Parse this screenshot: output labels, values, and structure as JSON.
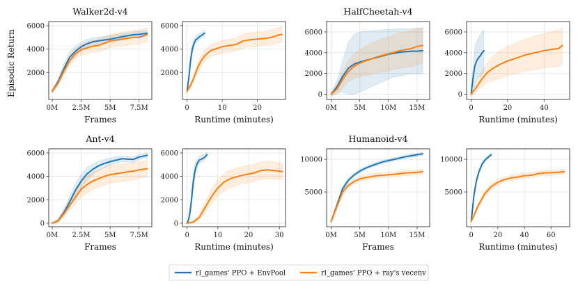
{
  "colors": {
    "envpool": "#1f77b4",
    "ray": "#ff7f0e"
  },
  "legend": {
    "envpool_label": "rl_games' PPO + EnvPool",
    "ray_label": "rl_games' PPO + ray's vecenv"
  },
  "chart_data": [
    {
      "type": "line",
      "title": "Walker2d-v4",
      "xlabel": "Frames",
      "ylabel": "Episodic Return",
      "xlim": [
        -0.3,
        8.6
      ],
      "ylim": [
        -300,
        6350
      ],
      "xticks": [
        0,
        2.5,
        5,
        7.5
      ],
      "xticklabels": [
        "0M",
        "2.5M",
        "5M",
        "7.5M"
      ],
      "yticks": [
        2000,
        4000,
        6000
      ],
      "yticklabels": [
        "2000",
        "4000",
        "6000"
      ],
      "series": [
        {
          "name": "rl_games' PPO + EnvPool",
          "x": [
            0,
            0.5,
            1,
            1.5,
            2,
            2.5,
            3,
            3.5,
            4,
            5,
            6,
            7,
            7.5,
            8.2
          ],
          "y": [
            400,
            1200,
            2300,
            3300,
            3800,
            4200,
            4450,
            4620,
            4700,
            4850,
            5050,
            5220,
            5250,
            5350
          ],
          "band": [
            150,
            250,
            400,
            450,
            450,
            400,
            380,
            350,
            330,
            300,
            280,
            250,
            250,
            250
          ]
        },
        {
          "name": "rl_games' PPO + ray's vecenv",
          "x": [
            0,
            0.5,
            1,
            1.5,
            2,
            2.5,
            3,
            3.5,
            4,
            5,
            6,
            7,
            7.5,
            8.2
          ],
          "y": [
            400,
            1100,
            2100,
            3000,
            3600,
            3950,
            4100,
            4250,
            4300,
            4700,
            4850,
            5000,
            5000,
            5250
          ],
          "band": [
            150,
            250,
            350,
            400,
            450,
            450,
            500,
            500,
            550,
            550,
            600,
            600,
            600,
            600
          ]
        }
      ]
    },
    {
      "type": "line",
      "title": "",
      "xlabel": "Runtime (minutes)",
      "ylabel": "",
      "xlim": [
        -1.3,
        28
      ],
      "ylim": [
        -300,
        6350
      ],
      "xticks": [
        0,
        10,
        20
      ],
      "xticklabels": [
        "0",
        "10",
        "20"
      ],
      "yticks": [
        2000,
        4000,
        6000
      ],
      "yticklabels": [
        "2000",
        "4000",
        "6000"
      ],
      "series": [
        {
          "name": "rl_games' PPO + EnvPool",
          "x": [
            0,
            0.5,
            1,
            1.5,
            2,
            2.5,
            3,
            3.5,
            4,
            5
          ],
          "y": [
            400,
            1500,
            3000,
            4000,
            4500,
            4800,
            4900,
            5050,
            5150,
            5350
          ],
          "band": [
            150,
            300,
            400,
            400,
            350,
            300,
            300,
            280,
            260,
            250
          ]
        },
        {
          "name": "rl_games' PPO + ray's vecenv",
          "x": [
            0,
            1,
            2,
            3,
            4,
            5,
            6,
            7,
            8,
            10,
            12,
            14,
            16,
            18,
            20,
            22,
            24,
            26,
            27
          ],
          "y": [
            400,
            900,
            1600,
            2400,
            3000,
            3400,
            3700,
            3900,
            4000,
            4200,
            4300,
            4400,
            4700,
            4800,
            4850,
            4900,
            5000,
            5200,
            5250
          ],
          "band": [
            150,
            250,
            300,
            400,
            450,
            450,
            500,
            500,
            500,
            550,
            550,
            550,
            600,
            600,
            600,
            600,
            650,
            650,
            650
          ]
        }
      ]
    },
    {
      "type": "line",
      "title": "HalfCheetah-v4",
      "xlabel": "",
      "ylabel": "",
      "xlim": [
        -0.8,
        17.2
      ],
      "ylim": [
        -500,
        7000
      ],
      "xticks": [
        0,
        5,
        10,
        15
      ],
      "xticklabels": [
        "0M",
        "5M",
        "10M",
        "15M"
      ],
      "yticks": [
        0,
        2000,
        4000,
        6000
      ],
      "yticklabels": [
        "0",
        "2000",
        "4000",
        "6000"
      ],
      "series": [
        {
          "name": "rl_games' PPO + EnvPool",
          "x": [
            0,
            1,
            2,
            3,
            4,
            5,
            6,
            7,
            8,
            9,
            10,
            11,
            12,
            13,
            14,
            15,
            16
          ],
          "y": [
            0,
            700,
            1700,
            2500,
            2900,
            3100,
            3250,
            3400,
            3550,
            3700,
            3850,
            3950,
            4050,
            4100,
            4150,
            4150,
            4200
          ],
          "band": [
            200,
            600,
            1500,
            2500,
            2900,
            2900,
            2800,
            2700,
            2600,
            2500,
            2400,
            2300,
            2300,
            2200,
            2200,
            2200,
            2200
          ]
        },
        {
          "name": "rl_games' PPO + ray's vecenv",
          "x": [
            0,
            1,
            2,
            3,
            4,
            5,
            6,
            7,
            8,
            9,
            10,
            11,
            12,
            13,
            14,
            15,
            16
          ],
          "y": [
            0,
            500,
            1400,
            2200,
            2700,
            3000,
            3200,
            3400,
            3600,
            3750,
            3900,
            4050,
            4200,
            4300,
            4400,
            4600,
            4700
          ],
          "band": [
            200,
            500,
            800,
            1000,
            1200,
            1300,
            1400,
            1500,
            1550,
            1600,
            1650,
            1650,
            1700,
            1700,
            1750,
            1750,
            1750
          ]
        }
      ]
    },
    {
      "type": "line",
      "title": "",
      "xlabel": "Runtime (minutes)",
      "ylabel": "",
      "xlim": [
        -2.5,
        54
      ],
      "ylim": [
        -500,
        7000
      ],
      "xticks": [
        0,
        20,
        40
      ],
      "xticklabels": [
        "0",
        "20",
        "40"
      ],
      "yticks": [
        0,
        2000,
        4000,
        6000
      ],
      "yticklabels": [
        "0",
        "2000",
        "4000",
        "6000"
      ],
      "series": [
        {
          "name": "rl_games' PPO + EnvPool",
          "x": [
            0,
            1,
            2,
            3,
            4,
            5,
            6,
            7
          ],
          "y": [
            0,
            1500,
            2700,
            3200,
            3500,
            3700,
            4000,
            4200
          ],
          "band": [
            200,
            1000,
            1800,
            1900,
            1900,
            2000,
            2000,
            2000
          ]
        },
        {
          "name": "rl_games' PPO + ray's vecenv",
          "x": [
            0,
            3,
            6,
            9,
            12,
            15,
            20,
            25,
            30,
            35,
            40,
            45,
            48,
            50
          ],
          "y": [
            0,
            700,
            1500,
            2100,
            2500,
            2800,
            3200,
            3500,
            3800,
            4000,
            4200,
            4350,
            4400,
            4700
          ],
          "band": [
            200,
            400,
            800,
            1000,
            1200,
            1300,
            1400,
            1500,
            1550,
            1600,
            1650,
            1700,
            1750,
            1750
          ]
        }
      ]
    },
    {
      "type": "line",
      "title": "Ant-v4",
      "xlabel": "Frames",
      "ylabel": "",
      "xlim": [
        -0.3,
        8.6
      ],
      "ylim": [
        -300,
        6350
      ],
      "xticks": [
        0,
        2.5,
        5,
        7.5
      ],
      "xticklabels": [
        "0M",
        "2.5M",
        "5M",
        "7.5M"
      ],
      "yticks": [
        0,
        2000,
        4000,
        6000
      ],
      "yticklabels": [
        "0",
        "2000",
        "4000",
        "6000"
      ],
      "series": [
        {
          "name": "rl_games' PPO + EnvPool",
          "x": [
            0,
            0.5,
            1,
            1.5,
            2,
            2.5,
            3,
            3.5,
            4,
            4.5,
            5,
            6,
            7,
            7.5,
            8.2
          ],
          "y": [
            0,
            200,
            900,
            1800,
            2800,
            3600,
            4200,
            4600,
            4900,
            5100,
            5250,
            5500,
            5450,
            5650,
            5800
          ],
          "band": [
            50,
            150,
            300,
            450,
            550,
            600,
            550,
            450,
            400,
            350,
            300,
            250,
            250,
            200,
            200
          ]
        },
        {
          "name": "rl_games' PPO + ray's vecenv",
          "x": [
            0,
            0.5,
            1,
            1.5,
            2,
            2.5,
            3,
            3.5,
            4,
            4.5,
            5,
            6,
            7,
            7.5,
            8.2
          ],
          "y": [
            0,
            200,
            800,
            1500,
            2200,
            2900,
            3300,
            3600,
            3800,
            4000,
            4150,
            4300,
            4450,
            4550,
            4650
          ],
          "band": [
            50,
            150,
            300,
            400,
            550,
            650,
            700,
            750,
            750,
            750,
            750,
            750,
            750,
            700,
            700
          ]
        }
      ]
    },
    {
      "type": "line",
      "title": "",
      "xlabel": "Runtime (minutes)",
      "ylabel": "",
      "xlim": [
        -1.5,
        32
      ],
      "ylim": [
        -300,
        6350
      ],
      "xticks": [
        0,
        10,
        20,
        30
      ],
      "xticklabels": [
        "0",
        "10",
        "20",
        "30"
      ],
      "yticks": [
        0,
        2000,
        4000,
        6000
      ],
      "yticklabels": [
        "0",
        "2000",
        "4000",
        "6000"
      ],
      "series": [
        {
          "name": "rl_games' PPO + EnvPool",
          "x": [
            0,
            0.5,
            1,
            1.5,
            2,
            2.5,
            3,
            3.5,
            4,
            5,
            6,
            6.5
          ],
          "y": [
            0,
            300,
            1000,
            2200,
            3500,
            4400,
            4900,
            5200,
            5400,
            5500,
            5700,
            5850
          ],
          "band": [
            50,
            150,
            400,
            600,
            650,
            600,
            450,
            350,
            300,
            300,
            250,
            200
          ]
        },
        {
          "name": "rl_games' PPO + ray's vecenv",
          "x": [
            0,
            2,
            4,
            6,
            8,
            10,
            12,
            14,
            16,
            18,
            20,
            22,
            24,
            26,
            28,
            30,
            31
          ],
          "y": [
            0,
            100,
            500,
            1400,
            2300,
            3000,
            3500,
            3800,
            3950,
            4100,
            4200,
            4300,
            4500,
            4550,
            4500,
            4450,
            4400
          ],
          "band": [
            50,
            100,
            250,
            450,
            600,
            700,
            750,
            750,
            750,
            750,
            750,
            750,
            750,
            750,
            750,
            700,
            700
          ]
        }
      ]
    },
    {
      "type": "line",
      "title": "Humanoid-v4",
      "xlabel": "Frames",
      "ylabel": "",
      "xlim": [
        -0.8,
        17.2
      ],
      "ylim": [
        -300,
        11600
      ],
      "xticks": [
        0,
        5,
        10,
        15
      ],
      "xticklabels": [
        "0M",
        "5M",
        "10M",
        "15M"
      ],
      "yticks": [
        5000,
        10000
      ],
      "yticklabels": [
        "5000",
        "10000"
      ],
      "series": [
        {
          "name": "rl_games' PPO + EnvPool",
          "x": [
            0,
            1,
            2,
            3,
            4,
            5,
            6,
            7,
            8,
            9,
            10,
            11,
            12,
            13,
            14,
            15,
            16
          ],
          "y": [
            500,
            3000,
            5500,
            6800,
            7600,
            8200,
            8650,
            9000,
            9300,
            9600,
            9800,
            10000,
            10200,
            10400,
            10550,
            10700,
            10850
          ],
          "band": [
            150,
            400,
            400,
            350,
            300,
            250,
            250,
            250,
            250,
            250,
            250,
            250,
            250,
            250,
            250,
            250,
            250
          ]
        },
        {
          "name": "rl_games' PPO + ray's vecenv",
          "x": [
            0,
            1,
            2,
            3,
            4,
            5,
            6,
            7,
            8,
            9,
            10,
            11,
            12,
            13,
            14,
            15,
            16
          ],
          "y": [
            500,
            2800,
            5000,
            6000,
            6600,
            7000,
            7200,
            7350,
            7500,
            7550,
            7650,
            7700,
            7800,
            7900,
            7950,
            8000,
            8100
          ],
          "band": [
            150,
            400,
            450,
            450,
            400,
            400,
            400,
            400,
            400,
            400,
            400,
            400,
            400,
            400,
            400,
            400,
            400
          ]
        }
      ]
    },
    {
      "type": "line",
      "title": "",
      "xlabel": "Runtime (minutes)",
      "ylabel": "",
      "xlim": [
        -3.5,
        74
      ],
      "ylim": [
        -300,
        11600
      ],
      "xticks": [
        0,
        20,
        40,
        60
      ],
      "xticklabels": [
        "0",
        "20",
        "40",
        "60"
      ],
      "yticks": [
        5000,
        10000
      ],
      "yticklabels": [
        "5000",
        "10000"
      ],
      "series": [
        {
          "name": "rl_games' PPO + EnvPool",
          "x": [
            0,
            1,
            2,
            4,
            6,
            8,
            10,
            12,
            14,
            15
          ],
          "y": [
            500,
            2500,
            4500,
            6800,
            8200,
            9200,
            9800,
            10200,
            10550,
            10700
          ],
          "band": [
            150,
            400,
            500,
            400,
            300,
            300,
            250,
            250,
            250,
            250
          ]
        },
        {
          "name": "rl_games' PPO + ray's vecenv",
          "x": [
            0,
            5,
            10,
            15,
            20,
            25,
            30,
            35,
            40,
            45,
            50,
            55,
            60,
            65,
            70
          ],
          "y": [
            500,
            2800,
            4700,
            5800,
            6500,
            6900,
            7150,
            7300,
            7500,
            7550,
            7800,
            7900,
            7950,
            8000,
            8100
          ],
          "band": [
            150,
            400,
            450,
            450,
            450,
            400,
            400,
            400,
            400,
            400,
            400,
            400,
            400,
            400,
            400
          ]
        }
      ]
    }
  ]
}
